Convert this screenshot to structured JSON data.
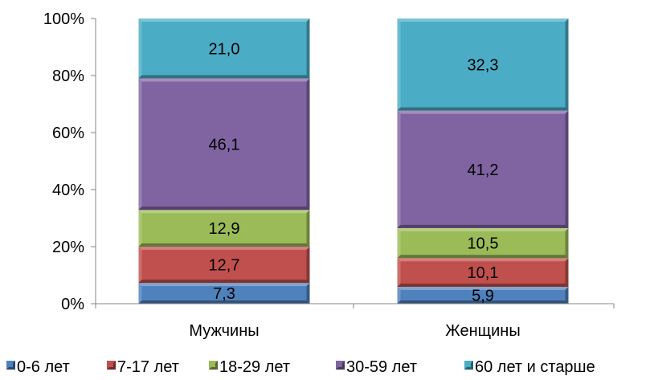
{
  "chart_data": {
    "type": "bar",
    "stacked": true,
    "categories": [
      "Мужчины",
      "Женщины"
    ],
    "series": [
      {
        "name": "0-6 лет",
        "color": "#4f81bd",
        "values": [
          7.3,
          5.9
        ],
        "labels": [
          "7,3",
          "5,9"
        ]
      },
      {
        "name": "7-17 лет",
        "color": "#c0504d",
        "values": [
          12.7,
          10.1
        ],
        "labels": [
          "12,7",
          "10,1"
        ]
      },
      {
        "name": "18-29 лет",
        "color": "#9bbb59",
        "values": [
          12.9,
          10.5
        ],
        "labels": [
          "12,9",
          "10,5"
        ]
      },
      {
        "name": "30-59 лет",
        "color": "#8064a2",
        "values": [
          46.1,
          41.2
        ],
        "labels": [
          "46,1",
          "41,2"
        ]
      },
      {
        "name": "60 лет и старше",
        "color": "#4bacc6",
        "values": [
          21.0,
          32.3
        ],
        "labels": [
          "21,0",
          "32,3"
        ]
      }
    ],
    "y_ticks": [
      0,
      20,
      40,
      60,
      80,
      100
    ],
    "y_tick_labels": [
      "0%",
      "20%",
      "40%",
      "60%",
      "80%",
      "100%"
    ],
    "ylim": [
      0,
      100
    ],
    "grid": false,
    "legend": "bottom"
  }
}
